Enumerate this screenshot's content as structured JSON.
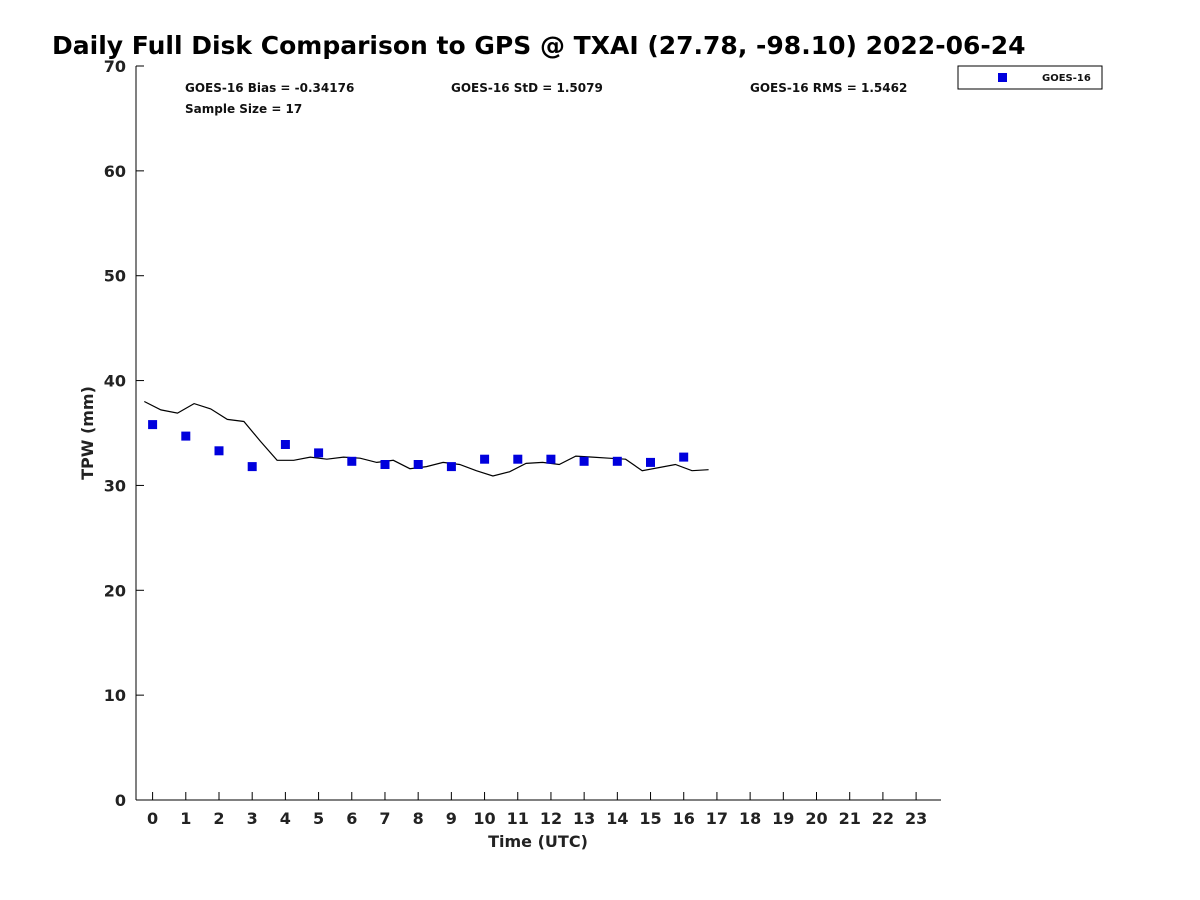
{
  "chart_data": {
    "type": "scatter",
    "title": "Daily Full Disk Comparison to GPS @ TXAI (27.78, -98.10) 2022-06-24",
    "xlabel": "Time (UTC)",
    "ylabel": "TPW (mm)",
    "xlim": [
      -0.5,
      23.75
    ],
    "ylim": [
      0,
      70
    ],
    "xticks": [
      "0",
      "1",
      "2",
      "3",
      "4",
      "5",
      "6",
      "7",
      "8",
      "9",
      "10",
      "11",
      "12",
      "13",
      "14",
      "15",
      "16",
      "17",
      "18",
      "19",
      "20",
      "21",
      "22",
      "23"
    ],
    "yticks": [
      "0",
      "10",
      "20",
      "30",
      "40",
      "50",
      "60",
      "70"
    ],
    "grid": false,
    "legend": {
      "position": "top-right",
      "entries": [
        "GOES-16"
      ]
    },
    "stats": {
      "bias": "GOES-16 Bias = -0.34176",
      "std": "GOES-16 StD = 1.5079",
      "rms": "GOES-16 RMS = 1.5462",
      "sample_size": "Sample Size = 17"
    },
    "series": [
      {
        "name": "GOES-16",
        "kind": "scatter",
        "color": "#0000dd",
        "x": [
          0,
          1,
          2,
          3,
          4,
          5,
          6,
          7,
          8,
          9,
          10,
          11,
          12,
          13,
          14,
          15,
          16
        ],
        "y": [
          35.8,
          34.7,
          33.3,
          31.8,
          33.9,
          33.1,
          32.3,
          32.0,
          32.0,
          31.8,
          32.5,
          32.5,
          32.5,
          32.3,
          32.3,
          32.2,
          32.7
        ]
      },
      {
        "kind": "line",
        "color": "#000000",
        "x": [
          -0.25,
          0.25,
          0.75,
          1.25,
          1.75,
          2.25,
          2.75,
          3.25,
          3.75,
          4.25,
          4.75,
          5.25,
          5.75,
          6.25,
          6.75,
          7.25,
          7.75,
          8.25,
          8.75,
          9.25,
          9.75,
          10.25,
          10.75,
          11.25,
          11.75,
          12.25,
          12.75,
          13.25,
          13.75,
          14.25,
          14.75,
          15.25,
          15.75,
          16.25,
          16.75
        ],
        "y": [
          38.0,
          37.2,
          36.9,
          37.8,
          37.3,
          36.3,
          36.1,
          34.2,
          32.4,
          32.4,
          32.7,
          32.5,
          32.7,
          32.6,
          32.2,
          32.4,
          31.6,
          31.8,
          32.2,
          32.0,
          31.4,
          30.9,
          31.3,
          32.1,
          32.2,
          32.0,
          32.8,
          32.7,
          32.6,
          32.5,
          31.4,
          31.7,
          32.0,
          31.4,
          31.5
        ]
      }
    ]
  }
}
